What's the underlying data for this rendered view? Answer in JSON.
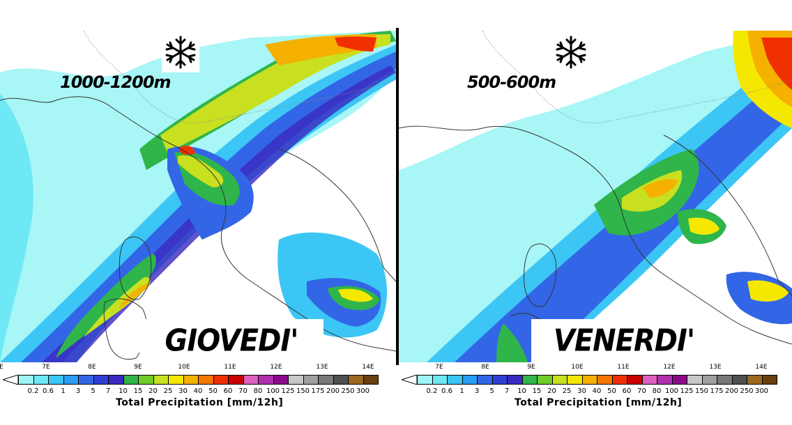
{
  "panels": [
    {
      "id": "left",
      "altitude_label": "1000-1200m",
      "day_label": "GIOVEDI'",
      "icon": "snowflake-icon",
      "longitude_labels": [
        "E",
        "7E",
        "8E",
        "9E",
        "10E",
        "11E",
        "12E",
        "13E",
        "14E"
      ]
    },
    {
      "id": "right",
      "altitude_label": "500-600m",
      "day_label": "VENERDI'",
      "icon": "snowflake-icon",
      "longitude_labels": [
        "7E",
        "8E",
        "9E",
        "10E",
        "11E",
        "12E",
        "13E",
        "14E"
      ]
    }
  ],
  "legend": {
    "title": "Total Precipitation [mm/12h]",
    "values": [
      "0.2",
      "0.6",
      "1",
      "3",
      "5",
      "7",
      "10",
      "15",
      "20",
      "25",
      "30",
      "40",
      "50",
      "60",
      "70",
      "80",
      "100",
      "125",
      "150",
      "175",
      "200",
      "250",
      "300"
    ],
    "colors": [
      "#9ff5f5",
      "#6fe8f5",
      "#3cc6f5",
      "#2a9df4",
      "#3366e6",
      "#2f3fd6",
      "#3a29c0",
      "#2fb54a",
      "#6fcc2a",
      "#c8e020",
      "#f5e800",
      "#f5b000",
      "#f57800",
      "#f03000",
      "#c80000",
      "#e060c0",
      "#b030b0",
      "#8a0a8a",
      "#c8c8c8",
      "#a0a0a0",
      "#787878",
      "#505050",
      "#9a6a20",
      "#6a4010"
    ]
  }
}
